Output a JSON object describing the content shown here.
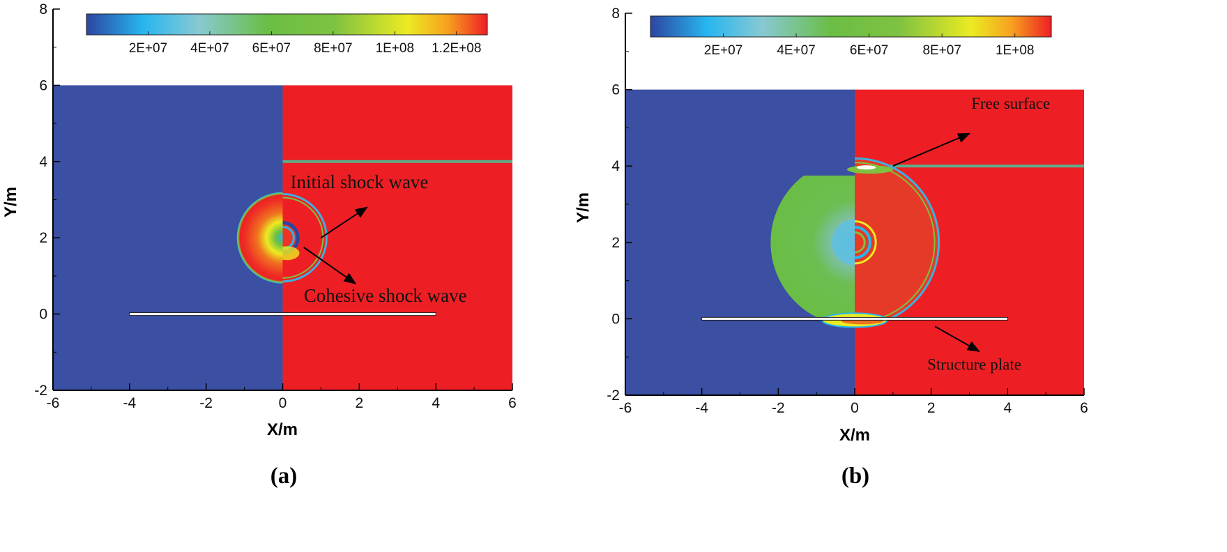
{
  "colors": {
    "low": "#3B4FA3",
    "high": "#EE1F24",
    "plate": "#FFFFFF",
    "colormap": [
      "#2D45A0",
      "#26B6F0",
      "#88C9D2",
      "#6ABE45",
      "#7FC241",
      "#EBEB22",
      "#F7A21F",
      "#EE1F24"
    ]
  },
  "chart_data": [
    {
      "type": "heatmap",
      "panel_label": "(a)",
      "xlabel": "X/m",
      "ylabel": "Y/m",
      "xlim": [
        -6,
        6
      ],
      "ylim": [
        -2,
        8
      ],
      "xticks": [
        "-6",
        "-4",
        "-2",
        "0",
        "2",
        "4",
        "6"
      ],
      "yticks": [
        "-2",
        "0",
        "2",
        "4",
        "6",
        "8"
      ],
      "colorbar": {
        "min": 0,
        "max": 130000000,
        "ticks": [
          {
            "value": 20000000,
            "label": "2E+07"
          },
          {
            "value": 40000000,
            "label": "4E+07"
          },
          {
            "value": 60000000,
            "label": "6E+07"
          },
          {
            "value": 80000000,
            "label": "8E+07"
          },
          {
            "value": 100000000,
            "label": "1E+08"
          },
          {
            "value": 120000000,
            "label": "1.2E+08"
          }
        ]
      },
      "domain": {
        "xmin": -6,
        "xmax": 6,
        "ymin": -2,
        "ymax": 6
      },
      "free_surface_y": 4,
      "plate": {
        "x1": -4,
        "x2": 4,
        "y": 0
      },
      "bubble": {
        "cx": 0,
        "cy": 2,
        "r": 1.2
      },
      "annotations": [
        {
          "text": "Initial shock wave",
          "text_x": 0.2,
          "text_y": 3.3,
          "from": [
            1.0,
            2.0
          ],
          "to": [
            2.2,
            2.8
          ]
        },
        {
          "text": "Cohesive shock wave",
          "text_x": 0.55,
          "text_y": 0.32,
          "from": [
            0.55,
            1.75
          ],
          "to": [
            1.9,
            0.8
          ]
        }
      ]
    },
    {
      "type": "heatmap",
      "panel_label": "(b)",
      "xlabel": "X/m",
      "ylabel": "Y/m",
      "xlim": [
        -6,
        6
      ],
      "ylim": [
        -2,
        8
      ],
      "xticks": [
        "-6",
        "-4",
        "-2",
        "0",
        "2",
        "4",
        "6"
      ],
      "yticks": [
        "-2",
        "0",
        "2",
        "4",
        "6",
        "8"
      ],
      "colorbar": {
        "min": 0,
        "max": 110000000,
        "ticks": [
          {
            "value": 20000000,
            "label": "2E+07"
          },
          {
            "value": 40000000,
            "label": "4E+07"
          },
          {
            "value": 60000000,
            "label": "6E+07"
          },
          {
            "value": 80000000,
            "label": "8E+07"
          },
          {
            "value": 100000000,
            "label": "1E+08"
          }
        ]
      },
      "domain": {
        "xmin": -6,
        "xmax": 6,
        "ymin": -2,
        "ymax": 6
      },
      "free_surface_y": 4,
      "plate": {
        "x1": -4,
        "x2": 4,
        "y": 0
      },
      "bubble": {
        "cx": 0,
        "cy": 2,
        "r": 2.2
      },
      "annotations": [
        {
          "text": "Free surface",
          "text_x": 3.05,
          "text_y": 5.5,
          "from": [
            1.0,
            4.0
          ],
          "to": [
            3.0,
            4.85
          ]
        },
        {
          "text": "Structure plate",
          "text_x": 1.9,
          "text_y": -1.33,
          "from": [
            2.1,
            -0.2
          ],
          "to": [
            3.25,
            -0.85
          ]
        }
      ]
    }
  ]
}
